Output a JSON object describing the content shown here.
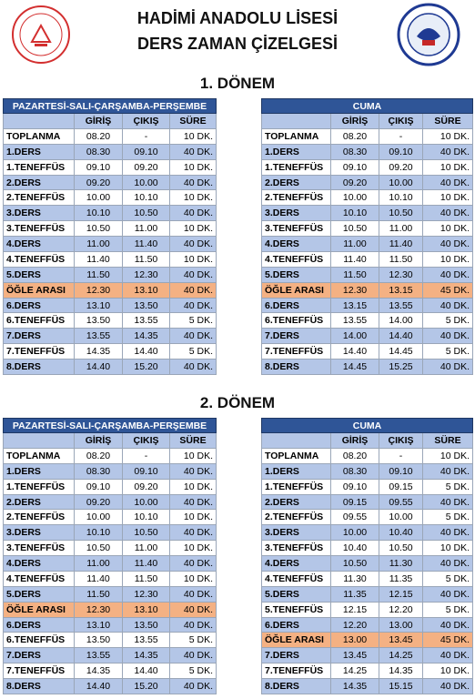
{
  "header": {
    "title_line1": "HADİMİ ANADOLU LİSESİ",
    "title_line2": "DERS ZAMAN ÇİZELGESİ"
  },
  "colors": {
    "caption": "#2f5597",
    "shaded": "#b4c6e7",
    "highlight": "#f4b183",
    "plain": "#ffffff"
  },
  "periods": [
    {
      "title": "1. DÖNEM",
      "tables": [
        {
          "caption": "PAZARTESİ-SALI-ÇARŞAMBA-PERŞEMBE",
          "columns": [
            "GİRİŞ",
            "ÇIKIŞ",
            "SÜRE"
          ],
          "highlight_row": 10,
          "shaded_rows": [
            1,
            3,
            5,
            7,
            9,
            11,
            13,
            15
          ],
          "rows": [
            [
              "TOPLANMA",
              "08.20",
              "-",
              "10 DK."
            ],
            [
              "1.DERS",
              "08.30",
              "09.10",
              "40 DK."
            ],
            [
              "1.TENEFFÜS",
              "09.10",
              "09.20",
              "10 DK."
            ],
            [
              "2.DERS",
              "09.20",
              "10.00",
              "40 DK."
            ],
            [
              "2.TENEFFÜS",
              "10.00",
              "10.10",
              "10 DK."
            ],
            [
              "3.DERS",
              "10.10",
              "10.50",
              "40 DK."
            ],
            [
              "3.TENEFFÜS",
              "10.50",
              "11.00",
              "10 DK."
            ],
            [
              "4.DERS",
              "11.00",
              "11.40",
              "40 DK."
            ],
            [
              "4.TENEFFÜS",
              "11.40",
              "11.50",
              "10 DK."
            ],
            [
              "5.DERS",
              "11.50",
              "12.30",
              "40 DK."
            ],
            [
              "ÖĞLE ARASI",
              "12.30",
              "13.10",
              "40 DK."
            ],
            [
              "6.DERS",
              "13.10",
              "13.50",
              "40 DK."
            ],
            [
              "6.TENEFFÜS",
              "13.50",
              "13.55",
              "5 DK."
            ],
            [
              "7.DERS",
              "13.55",
              "14.35",
              "40 DK."
            ],
            [
              "7.TENEFFÜS",
              "14.35",
              "14.40",
              "5 DK."
            ],
            [
              "8.DERS",
              "14.40",
              "15.20",
              "40 DK."
            ]
          ]
        },
        {
          "caption": "CUMA",
          "columns": [
            "GİRİŞ",
            "ÇIKIŞ",
            "SÜRE"
          ],
          "highlight_row": 10,
          "shaded_rows": [
            1,
            3,
            5,
            7,
            9,
            11,
            13,
            15
          ],
          "rows": [
            [
              "TOPLANMA",
              "08.20",
              "-",
              "10 DK."
            ],
            [
              "1.DERS",
              "08.30",
              "09.10",
              "40 DK."
            ],
            [
              "1.TENEFFÜS",
              "09.10",
              "09.20",
              "10 DK."
            ],
            [
              "2.DERS",
              "09.20",
              "10.00",
              "40 DK."
            ],
            [
              "2.TENEFFÜS",
              "10.00",
              "10.10",
              "10 DK."
            ],
            [
              "3.DERS",
              "10.10",
              "10.50",
              "40 DK."
            ],
            [
              "3.TENEFFÜS",
              "10.50",
              "11.00",
              "10 DK."
            ],
            [
              "4.DERS",
              "11.00",
              "11.40",
              "40 DK."
            ],
            [
              "4.TENEFFÜS",
              "11.40",
              "11.50",
              "10 DK."
            ],
            [
              "5.DERS",
              "11.50",
              "12.30",
              "40 DK."
            ],
            [
              "ÖĞLE ARASI",
              "12.30",
              "13.15",
              "45 DK."
            ],
            [
              "6.DERS",
              "13.15",
              "13.55",
              "40 DK."
            ],
            [
              "6.TENEFFÜS",
              "13.55",
              "14.00",
              "5 DK."
            ],
            [
              "7.DERS",
              "14.00",
              "14.40",
              "40 DK."
            ],
            [
              "7.TENEFFÜS",
              "14.40",
              "14.45",
              "5 DK."
            ],
            [
              "8.DERS",
              "14.45",
              "15.25",
              "40 DK."
            ]
          ]
        }
      ]
    },
    {
      "title": "2. DÖNEM",
      "tables": [
        {
          "caption": "PAZARTESİ-SALI-ÇARŞAMBA-PERŞEMBE",
          "columns": [
            "GİRİŞ",
            "ÇIKIŞ",
            "SÜRE"
          ],
          "highlight_row": 10,
          "shaded_rows": [
            1,
            3,
            5,
            7,
            9,
            11,
            13,
            15
          ],
          "rows": [
            [
              "TOPLANMA",
              "08.20",
              "-",
              "10 DK."
            ],
            [
              "1.DERS",
              "08.30",
              "09.10",
              "40 DK."
            ],
            [
              "1.TENEFFÜS",
              "09.10",
              "09.20",
              "10 DK."
            ],
            [
              "2.DERS",
              "09.20",
              "10.00",
              "40 DK."
            ],
            [
              "2.TENEFFÜS",
              "10.00",
              "10.10",
              "10 DK."
            ],
            [
              "3.DERS",
              "10.10",
              "10.50",
              "40 DK."
            ],
            [
              "3.TENEFFÜS",
              "10.50",
              "11.00",
              "10 DK."
            ],
            [
              "4.DERS",
              "11.00",
              "11.40",
              "40 DK."
            ],
            [
              "4.TENEFFÜS",
              "11.40",
              "11.50",
              "10 DK."
            ],
            [
              "5.DERS",
              "11.50",
              "12.30",
              "40 DK."
            ],
            [
              "ÖĞLE ARASI",
              "12.30",
              "13.10",
              "40 DK."
            ],
            [
              "6.DERS",
              "13.10",
              "13.50",
              "40 DK."
            ],
            [
              "6.TENEFFÜS",
              "13.50",
              "13.55",
              "5 DK."
            ],
            [
              "7.DERS",
              "13.55",
              "14.35",
              "40 DK."
            ],
            [
              "7.TENEFFÜS",
              "14.35",
              "14.40",
              "5 DK."
            ],
            [
              "8.DERS",
              "14.40",
              "15.20",
              "40 DK."
            ]
          ]
        },
        {
          "caption": "CUMA",
          "columns": [
            "GİRİŞ",
            "ÇIKIŞ",
            "SÜRE"
          ],
          "highlight_row": 12,
          "shaded_rows": [
            1,
            3,
            5,
            7,
            9,
            11,
            13,
            15
          ],
          "rows": [
            [
              "TOPLANMA",
              "08.20",
              "-",
              "10 DK."
            ],
            [
              "1.DERS",
              "08.30",
              "09.10",
              "40 DK."
            ],
            [
              "1.TENEFFÜS",
              "09.10",
              "09.15",
              "5 DK."
            ],
            [
              "2.DERS",
              "09.15",
              "09.55",
              "40 DK."
            ],
            [
              "2.TENEFFÜS",
              "09.55",
              "10.00",
              "5 DK."
            ],
            [
              "3.DERS",
              "10.00",
              "10.40",
              "40 DK."
            ],
            [
              "3.TENEFFÜS",
              "10.40",
              "10.50",
              "10 DK."
            ],
            [
              "4.DERS",
              "10.50",
              "11.30",
              "40 DK."
            ],
            [
              "4.TENEFFÜS",
              "11.30",
              "11.35",
              "5 DK."
            ],
            [
              "5.DERS",
              "11.35",
              "12.15",
              "40 DK."
            ],
            [
              "5.TENEFFÜS",
              "12.15",
              "12.20",
              "5 DK."
            ],
            [
              "6.DERS",
              "12.20",
              "13.00",
              "40 DK."
            ],
            [
              "ÖĞLE ARASI",
              "13.00",
              "13.45",
              "45 DK."
            ],
            [
              "7.DERS",
              "13.45",
              "14.25",
              "40 DK."
            ],
            [
              "7.TENEFFÜS",
              "14.25",
              "14.35",
              "10 DK."
            ],
            [
              "8.DERS",
              "14.35",
              "15.15",
              "40 DK."
            ]
          ]
        }
      ]
    }
  ]
}
